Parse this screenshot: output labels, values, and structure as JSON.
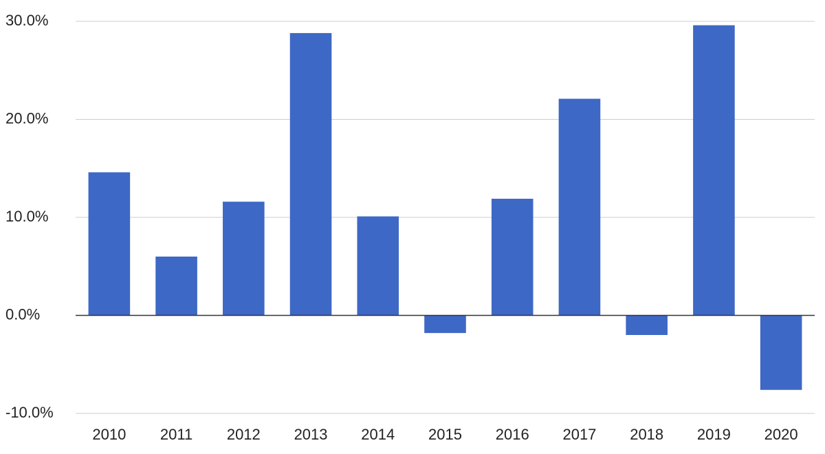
{
  "chart_data": {
    "type": "bar",
    "categories": [
      "2010",
      "2011",
      "2012",
      "2013",
      "2014",
      "2015",
      "2016",
      "2017",
      "2018",
      "2019",
      "2020"
    ],
    "values": [
      14.6,
      6.0,
      11.6,
      28.8,
      10.1,
      -1.8,
      11.9,
      22.1,
      -2.0,
      29.6,
      -7.6
    ],
    "color": "#3e68c5",
    "ylim": [
      -10,
      30
    ],
    "yticks": [
      {
        "value": -10,
        "label": "-10.0%"
      },
      {
        "value": 0,
        "label": "0.0%"
      },
      {
        "value": 10,
        "label": "10.0%"
      },
      {
        "value": 20,
        "label": "20.0%"
      },
      {
        "value": 30,
        "label": "30.0%"
      }
    ],
    "grid": true
  }
}
